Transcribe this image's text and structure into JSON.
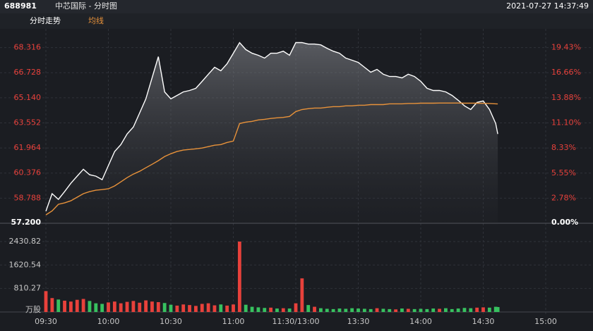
{
  "header": {
    "code": "688981",
    "title": "中芯国际 - 分时图",
    "timestamp": "2021-07-27 14:37:49"
  },
  "chart_data": [
    {
      "type": "line",
      "x": [
        0,
        3,
        6,
        9,
        12,
        15,
        18,
        21,
        24,
        27,
        30,
        33,
        36,
        39,
        42,
        45,
        48,
        51,
        54,
        57,
        60,
        63,
        66,
        69,
        72,
        75,
        78,
        81,
        84,
        87,
        90,
        93,
        96,
        99,
        102,
        105,
        108,
        111,
        114,
        117,
        120,
        123,
        126,
        129,
        132,
        135,
        138,
        141,
        144,
        147,
        150,
        153,
        156,
        159,
        162,
        165,
        168,
        171,
        174,
        177,
        180,
        183,
        186,
        189,
        192,
        195,
        198,
        201,
        204,
        207,
        210,
        213,
        216,
        217
      ],
      "series": [
        {
          "name": "分时走势",
          "color": "#ffffff",
          "values": [
            57.96,
            59.07,
            58.71,
            59.2,
            59.73,
            60.18,
            60.62,
            60.27,
            60.18,
            59.96,
            60.85,
            61.74,
            62.18,
            62.85,
            63.29,
            64.18,
            65.07,
            66.4,
            67.74,
            65.51,
            65.07,
            65.29,
            65.51,
            65.6,
            65.74,
            66.18,
            66.63,
            67.07,
            66.85,
            67.29,
            67.96,
            68.63,
            68.19,
            67.96,
            67.83,
            67.65,
            67.96,
            67.96,
            68.09,
            67.83,
            68.63,
            68.63,
            68.54,
            68.54,
            68.49,
            68.27,
            68.09,
            67.96,
            67.65,
            67.52,
            67.38,
            67.07,
            66.76,
            66.94,
            66.63,
            66.49,
            66.49,
            66.4,
            66.63,
            66.49,
            66.18,
            65.74,
            65.6,
            65.6,
            65.51,
            65.29,
            64.98,
            64.63,
            64.4,
            64.85,
            64.94,
            64.4,
            63.51,
            62.85
          ]
        },
        {
          "name": "均线",
          "color": "#e8923a",
          "values": [
            57.73,
            57.98,
            58.4,
            58.49,
            58.62,
            58.85,
            59.07,
            59.2,
            59.29,
            59.33,
            59.38,
            59.56,
            59.82,
            60.09,
            60.31,
            60.49,
            60.71,
            60.93,
            61.16,
            61.42,
            61.6,
            61.74,
            61.83,
            61.87,
            61.91,
            61.96,
            62.05,
            62.14,
            62.18,
            62.31,
            62.4,
            63.51,
            63.6,
            63.65,
            63.74,
            63.78,
            63.83,
            63.87,
            63.9,
            63.96,
            64.27,
            64.4,
            64.45,
            64.49,
            64.49,
            64.54,
            64.58,
            64.58,
            64.63,
            64.63,
            64.67,
            64.67,
            64.71,
            64.71,
            64.71,
            64.76,
            64.76,
            64.76,
            64.78,
            64.78,
            64.8,
            64.8,
            64.8,
            64.81,
            64.81,
            64.81,
            64.81,
            64.8,
            64.8,
            64.8,
            64.79,
            64.78,
            64.76,
            64.75
          ]
        }
      ],
      "xlim": [
        0,
        240
      ],
      "ylim": [
        57.2,
        69.1
      ],
      "yticks": [
        {
          "value": 57.2,
          "label": "57.200"
        },
        58.788,
        60.376,
        61.964,
        63.552,
        {
          "value": 65.14,
          "label": "65.140"
        },
        66.728,
        68.316
      ],
      "y2lim": [
        0,
        20.8
      ],
      "y2ticks": [
        {
          "value": 0,
          "label": "0.00%"
        },
        {
          "value": 2.78,
          "label": "2.78%"
        },
        {
          "value": 5.55,
          "label": "5.55%"
        },
        {
          "value": 8.33,
          "label": "8.33%"
        },
        {
          "value": 11.1,
          "label": "11.10%"
        },
        {
          "value": 13.88,
          "label": "13.88%"
        },
        {
          "value": 16.66,
          "label": "16.66%"
        },
        {
          "value": 19.43,
          "label": "19.43%"
        }
      ],
      "grid": true
    },
    {
      "type": "bar",
      "x": [
        0,
        3,
        6,
        9,
        12,
        15,
        18,
        21,
        24,
        27,
        30,
        33,
        36,
        39,
        42,
        45,
        48,
        51,
        54,
        57,
        60,
        63,
        66,
        69,
        72,
        75,
        78,
        81,
        84,
        87,
        90,
        93,
        96,
        99,
        102,
        105,
        108,
        111,
        114,
        117,
        120,
        123,
        126,
        129,
        132,
        135,
        138,
        141,
        144,
        147,
        150,
        153,
        156,
        159,
        162,
        165,
        168,
        171,
        174,
        177,
        180,
        183,
        186,
        189,
        192,
        195,
        198,
        201,
        204,
        207,
        210,
        213,
        216,
        217
      ],
      "values": [
        720,
        480,
        430,
        390,
        360,
        420,
        450,
        380,
        300,
        280,
        330,
        360,
        300,
        350,
        380,
        320,
        400,
        360,
        340,
        310,
        250,
        220,
        260,
        240,
        210,
        280,
        300,
        230,
        260,
        220,
        260,
        2430,
        250,
        180,
        160,
        140,
        150,
        120,
        130,
        120,
        300,
        1160,
        240,
        180,
        130,
        110,
        100,
        120,
        110,
        130,
        120,
        110,
        100,
        130,
        110,
        100,
        90,
        120,
        110,
        100,
        110,
        100,
        120,
        110,
        130,
        100,
        120,
        140,
        130,
        150,
        160,
        150,
        180,
        170
      ],
      "colors": [
        "#e8413b",
        "#e8413b",
        "#37c15f",
        "#e8413b",
        "#e8413b",
        "#e8413b",
        "#e8413b",
        "#37c15f",
        "#37c15f",
        "#37c15f",
        "#e8413b",
        "#e8413b",
        "#e8413b",
        "#e8413b",
        "#e8413b",
        "#e8413b",
        "#e8413b",
        "#e8413b",
        "#e8413b",
        "#37c15f",
        "#37c15f",
        "#e8413b",
        "#e8413b",
        "#e8413b",
        "#e8413b",
        "#e8413b",
        "#e8413b",
        "#e8413b",
        "#37c15f",
        "#e8413b",
        "#e8413b",
        "#e8413b",
        "#37c15f",
        "#37c15f",
        "#37c15f",
        "#37c15f",
        "#e8413b",
        "#37c15f",
        "#e8413b",
        "#37c15f",
        "#e8413b",
        "#e8413b",
        "#37c15f",
        "#e8413b",
        "#37c15f",
        "#37c15f",
        "#37c15f",
        "#37c15f",
        "#37c15f",
        "#37c15f",
        "#37c15f",
        "#37c15f",
        "#37c15f",
        "#e8413b",
        "#37c15f",
        "#37c15f",
        "#e8413b",
        "#37c15f",
        "#e8413b",
        "#37c15f",
        "#37c15f",
        "#37c15f",
        "#37c15f",
        "#e8413b",
        "#37c15f",
        "#37c15f",
        "#37c15f",
        "#37c15f",
        "#37c15f",
        "#e8413b",
        "#e8413b",
        "#37c15f",
        "#37c15f",
        "#37c15f"
      ],
      "xlim": [
        0,
        240
      ],
      "xticks": [
        {
          "value": 0,
          "label": "09:30"
        },
        {
          "value": 30,
          "label": "10:00"
        },
        {
          "value": 60,
          "label": "10:30"
        },
        {
          "value": 90,
          "label": "11:00"
        },
        {
          "value": 120,
          "label": "11:30/13:00"
        },
        {
          "value": 150,
          "label": "13:30"
        },
        {
          "value": 180,
          "label": "14:00"
        },
        {
          "value": 210,
          "label": "14:30"
        },
        {
          "value": 240,
          "label": "15:00"
        }
      ],
      "ylim": [
        0,
        2600
      ],
      "yticks": [
        {
          "value": 0,
          "label": "万股"
        },
        810.27,
        1620.54,
        2430.82
      ],
      "grid": true
    }
  ]
}
